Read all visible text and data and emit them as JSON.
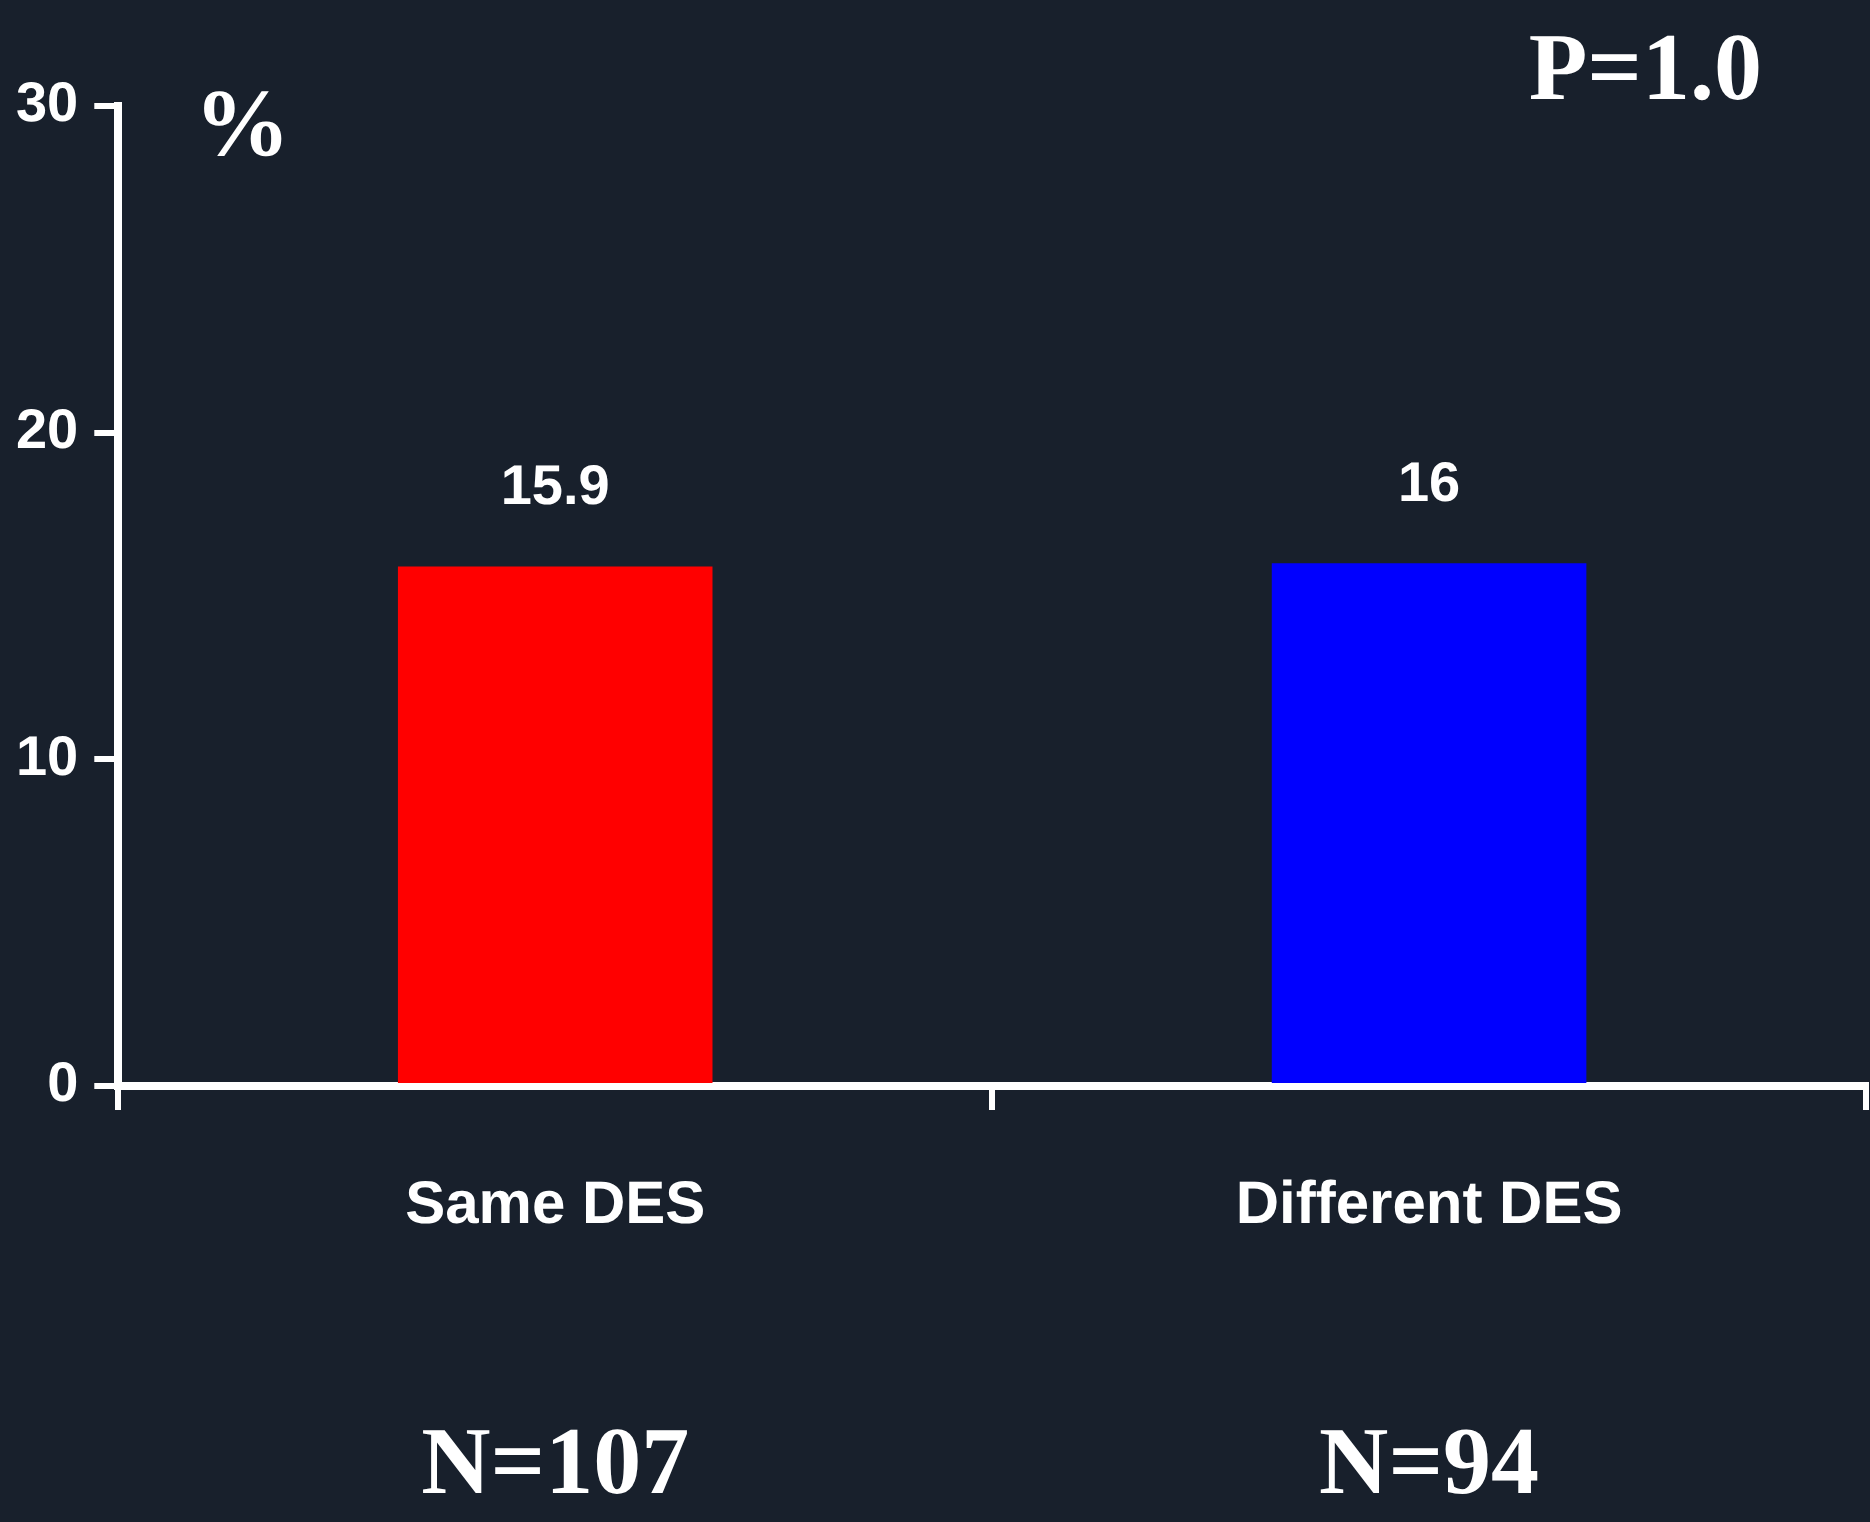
{
  "chart_data": {
    "type": "bar",
    "ylabel": "%",
    "categories": [
      "Same DES",
      "Different DES"
    ],
    "values": [
      15.9,
      16
    ],
    "colors": [
      "#ff0000",
      "#0000ff"
    ],
    "ylim": [
      0,
      30
    ],
    "yticks": [
      0,
      10,
      20,
      30
    ],
    "data_labels": true,
    "annotations": [
      "P=1.0",
      "N=107",
      "N=94"
    ]
  }
}
